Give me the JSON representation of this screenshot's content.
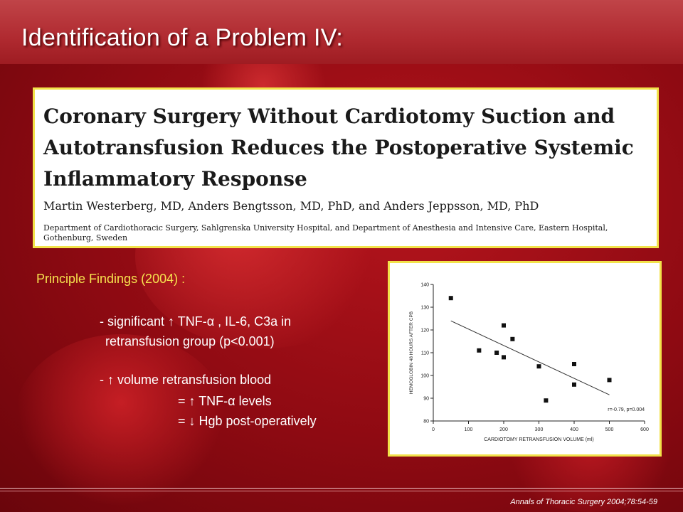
{
  "slide": {
    "title": "Identification of a Problem IV:",
    "citation": "Annals of Thoracic Surgery 2004;78:54-59"
  },
  "paper": {
    "title": "Coronary Surgery Without Cardiotomy Suction and Autotransfusion Reduces the Postoperative Systemic Inflammatory Response",
    "authors": "Martin Westerberg, MD, Anders Bengtsson, MD, PhD, and Anders Jeppsson, MD, PhD",
    "affiliation": "Department of Cardiothoracic Surgery, Sahlgrenska University Hospital, and Department of Anesthesia and Intensive Care, Eastern Hospital, Gothenburg, Sweden"
  },
  "findings": {
    "heading": "Principle Findings (2004) :",
    "line1": "- significant ↑ TNF-α , IL-6, C3a in",
    "line2": "retransfusion group (p<0.001)",
    "line3": "- ↑ volume retransfusion blood",
    "line4": "= ↑ TNF-α levels",
    "line5": "= ↓ Hgb post-operatively"
  },
  "chart_data": {
    "type": "scatter",
    "xlabel": "CARDIOTOMY RETRANSFUSION VOLUME (ml)",
    "ylabel": "HEMOGLOBIN 48 HOURS AFTER CPB",
    "annotation": "r=-0.79, p=0.004",
    "xlim": [
      0,
      600
    ],
    "ylim": [
      80,
      140
    ],
    "xticks": [
      0,
      100,
      200,
      300,
      400,
      500,
      600
    ],
    "yticks": [
      80,
      90,
      100,
      110,
      120,
      130,
      140
    ],
    "points": [
      {
        "x": 50,
        "y": 134
      },
      {
        "x": 130,
        "y": 111
      },
      {
        "x": 180,
        "y": 110
      },
      {
        "x": 200,
        "y": 122
      },
      {
        "x": 200,
        "y": 108
      },
      {
        "x": 225,
        "y": 116
      },
      {
        "x": 300,
        "y": 104
      },
      {
        "x": 320,
        "y": 89
      },
      {
        "x": 400,
        "y": 105
      },
      {
        "x": 400,
        "y": 96
      },
      {
        "x": 500,
        "y": 98
      }
    ],
    "trendline": {
      "x": [
        50,
        500
      ],
      "y": [
        124,
        91.5
      ]
    },
    "grid": false
  }
}
